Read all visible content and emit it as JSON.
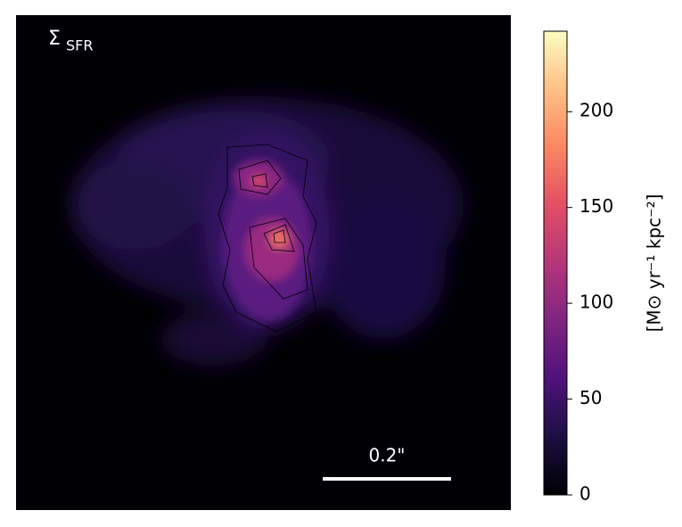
{
  "chart_data": {
    "type": "heatmap",
    "title": {
      "symbol": "Σ",
      "subscript": "SFR"
    },
    "scale_bar_label": "0.2\"",
    "colorbar": {
      "label": "[M⊙ yr⁻¹ kpc⁻²]",
      "ylim": [
        0,
        242
      ],
      "yticks": [
        0,
        50,
        100,
        150,
        200
      ],
      "colormap": "magma"
    }
  }
}
